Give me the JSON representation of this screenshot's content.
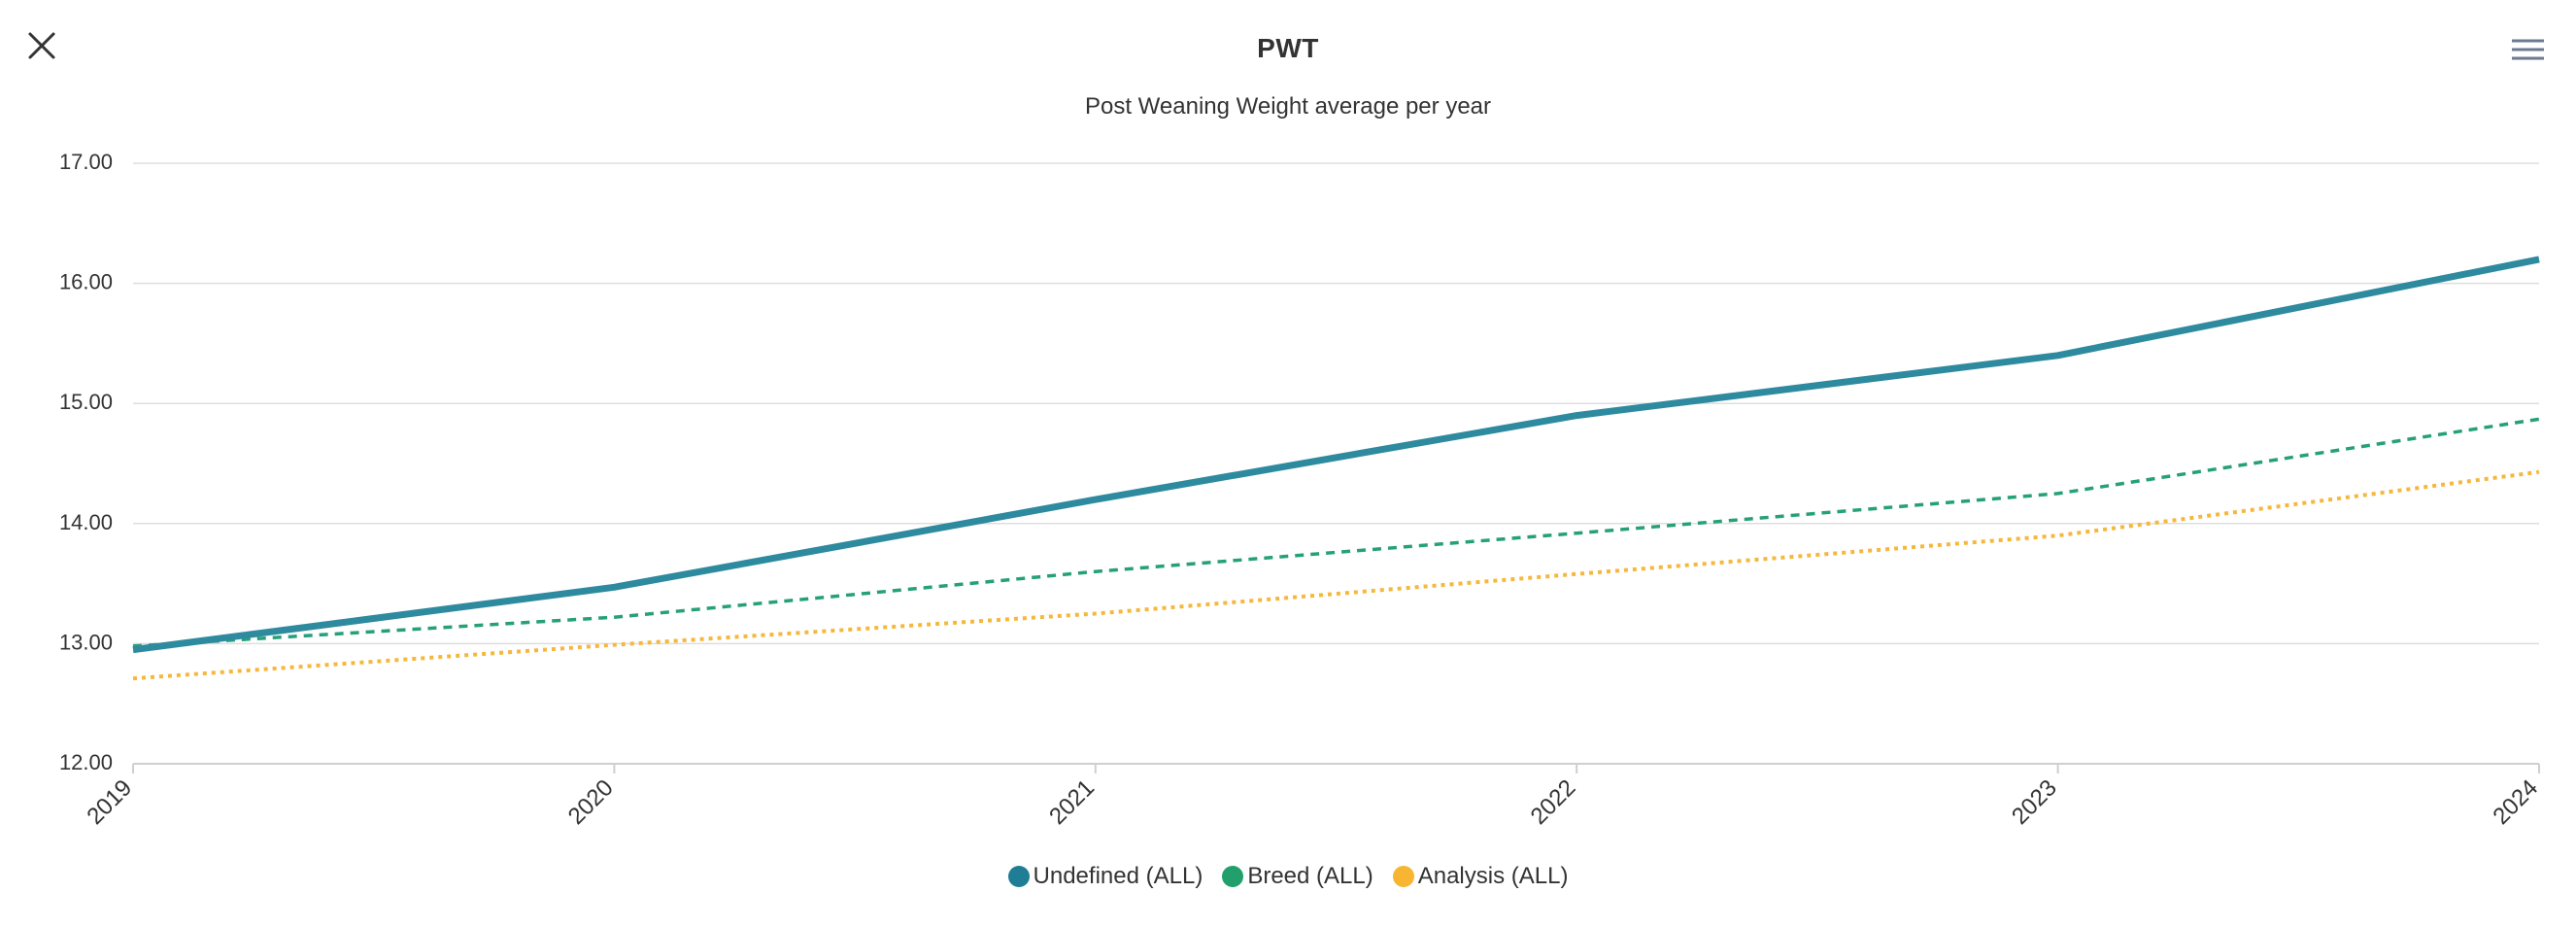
{
  "chart_data": {
    "type": "line",
    "title": "PWT",
    "subtitle": "Post Weaning Weight average per year",
    "xlabel": "",
    "ylabel": "",
    "categories": [
      "2019",
      "2020",
      "2021",
      "2022",
      "2023",
      "2024"
    ],
    "ylim": [
      12,
      17
    ],
    "yticks": [
      "12.00",
      "13.00",
      "14.00",
      "15.00",
      "16.00",
      "17.00"
    ],
    "grid": true,
    "legend_position": "bottom-center",
    "series": [
      {
        "name": "Undefined (ALL)",
        "color": "#2e8a9e",
        "style": "solid",
        "values": [
          12.95,
          13.47,
          14.2,
          14.9,
          15.4,
          16.2
        ]
      },
      {
        "name": "Breed (ALL)",
        "color": "#26a07a",
        "style": "dashed",
        "values": [
          12.98,
          13.22,
          13.6,
          13.92,
          14.25,
          14.87
        ]
      },
      {
        "name": "Analysis (ALL)",
        "color": "#f5b83d",
        "style": "dotted",
        "values": [
          12.71,
          12.99,
          13.25,
          13.58,
          13.9,
          14.43
        ]
      }
    ]
  },
  "legend_colors": [
    "#1f7d96",
    "#22a06b",
    "#f7b531"
  ],
  "icons": {
    "close": "close-icon",
    "menu": "hamburger-menu-icon"
  }
}
